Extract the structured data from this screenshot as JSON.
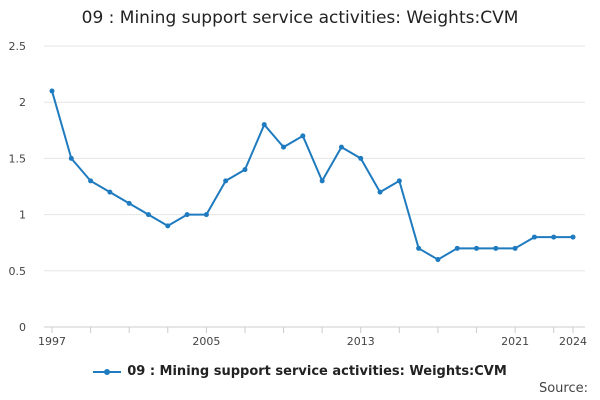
{
  "chart_data": {
    "type": "line",
    "title": "09 : Mining support service activities: Weights:CVM",
    "xlabel": "",
    "ylabel": "",
    "x": [
      1997,
      1998,
      1999,
      2000,
      2001,
      2002,
      2003,
      2004,
      2005,
      2006,
      2007,
      2008,
      2009,
      2010,
      2011,
      2012,
      2013,
      2014,
      2015,
      2016,
      2017,
      2018,
      2019,
      2020,
      2021,
      2022,
      2023,
      2024
    ],
    "series": [
      {
        "name": "09 : Mining support service activities: Weights:CVM",
        "color": "#1f7bbf",
        "values": [
          2.1,
          1.5,
          1.3,
          1.2,
          1.1,
          1.0,
          0.9,
          1.0,
          1.0,
          1.3,
          1.4,
          1.8,
          1.6,
          1.7,
          1.3,
          1.6,
          1.5,
          1.2,
          1.3,
          0.7,
          0.6,
          0.7,
          0.7,
          0.7,
          0.7,
          0.8,
          0.8,
          0.8
        ]
      }
    ],
    "ylim": [
      0,
      2.5
    ],
    "yticks": [
      "0",
      "0.5",
      "1",
      "1.5",
      "2",
      "2.5"
    ],
    "xticks_labeled": [
      "1997",
      "2005",
      "2013",
      "2021",
      "2024"
    ],
    "grid": true,
    "legend_position": "bottom"
  },
  "source_label": "Source:"
}
